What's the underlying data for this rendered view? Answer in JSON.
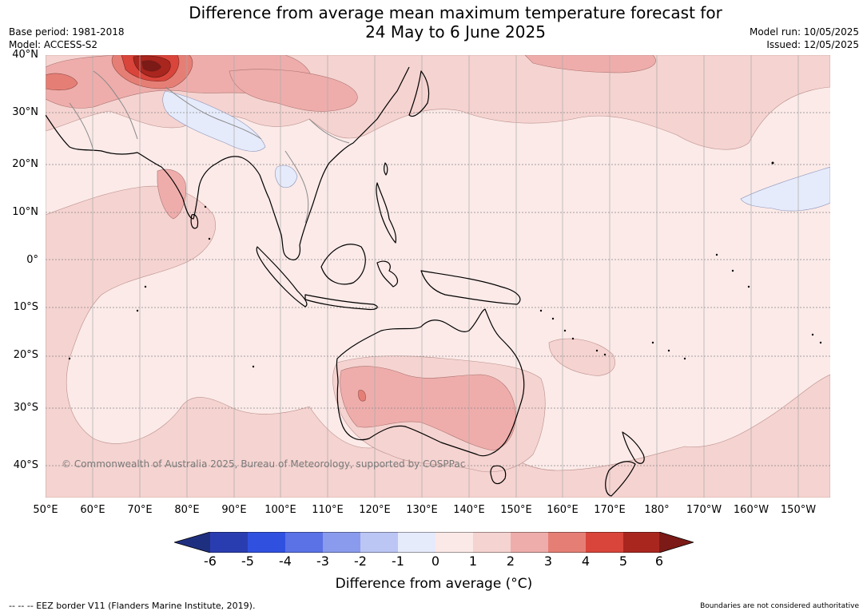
{
  "header": {
    "title_line1": "Difference from average mean maximum temperature forecast for",
    "title_line2": "24 May to 6 June 2025",
    "base_period": "Base period: 1981-2018",
    "model": "Model: ACCESS-S2",
    "model_run": "Model run: 10/05/2025",
    "issued": "Issued: 12/05/2025"
  },
  "map": {
    "lat_labels": [
      "40°N",
      "30°N",
      "20°N",
      "10°N",
      "0°",
      "10°S",
      "20°S",
      "30°S",
      "40°S"
    ],
    "lon_labels": [
      "50°E",
      "60°E",
      "70°E",
      "80°E",
      "90°E",
      "100°E",
      "110°E",
      "120°E",
      "130°E",
      "140°E",
      "150°E",
      "160°E",
      "170°E",
      "180°",
      "170°W",
      "160°W",
      "150°W"
    ],
    "copyright": "© Commonwealth of Australia 2025, Bureau of Meteorology, supported by COSPPac"
  },
  "colorbar": {
    "ticks": [
      "-6",
      "-5",
      "-4",
      "-3",
      "-2",
      "-1",
      "0",
      "1",
      "2",
      "3",
      "4",
      "5",
      "6"
    ],
    "colors": [
      "#1f2f80",
      "#2a3db0",
      "#3051e0",
      "#5a72e6",
      "#8a9bed",
      "#bcc6f5",
      "#e6ebfb",
      "#fbe9e7",
      "#f5d3d0",
      "#eeadab",
      "#e57f76",
      "#d9453b",
      "#a9261f",
      "#7b1a16"
    ],
    "label": "Difference from average (°C)"
  },
  "footer": {
    "eez": "--  --  -- EEZ border V11 (Flanders Marine Institute, 2019).",
    "boundaries": "Boundaries are not considered authoritative"
  }
}
